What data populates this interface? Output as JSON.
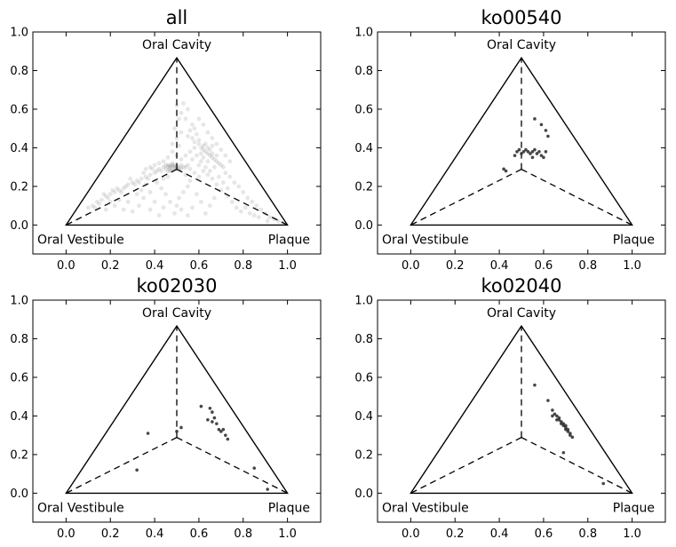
{
  "chart_data": [
    {
      "type": "scatter",
      "title": "all",
      "xlim": [
        -0.15,
        1.15
      ],
      "ylim": [
        -0.15,
        1.0
      ],
      "xticks": [
        "0.0",
        "0.2",
        "0.4",
        "0.6",
        "0.8",
        "1.0"
      ],
      "yticks": [
        "0.0",
        "0.2",
        "0.4",
        "0.6",
        "0.8",
        "1.0"
      ],
      "corner_labels": {
        "top": "Oral Cavity",
        "left": "Oral Vestibule",
        "right": "Plaque"
      },
      "point_color": "#333333",
      "point_alpha": 0.12,
      "points": [
        [
          0.48,
          0.3
        ],
        [
          0.47,
          0.29
        ],
        [
          0.49,
          0.31
        ],
        [
          0.46,
          0.3
        ],
        [
          0.5,
          0.3
        ],
        [
          0.51,
          0.29
        ],
        [
          0.45,
          0.29
        ],
        [
          0.52,
          0.31
        ],
        [
          0.48,
          0.28
        ],
        [
          0.47,
          0.31
        ],
        [
          0.49,
          0.29
        ],
        [
          0.46,
          0.28
        ],
        [
          0.5,
          0.31
        ],
        [
          0.53,
          0.3
        ],
        [
          0.44,
          0.3
        ],
        [
          0.48,
          0.32
        ],
        [
          0.51,
          0.3
        ],
        [
          0.47,
          0.3
        ],
        [
          0.49,
          0.3
        ],
        [
          0.45,
          0.31
        ],
        [
          0.43,
          0.28
        ],
        [
          0.52,
          0.29
        ],
        [
          0.54,
          0.3
        ],
        [
          0.42,
          0.29
        ],
        [
          0.48,
          0.31
        ],
        [
          0.5,
          0.29
        ],
        [
          0.46,
          0.31
        ],
        [
          0.55,
          0.31
        ],
        [
          0.41,
          0.28
        ],
        [
          0.47,
          0.28
        ],
        [
          0.4,
          0.27
        ],
        [
          0.38,
          0.26
        ],
        [
          0.36,
          0.25
        ],
        [
          0.34,
          0.24
        ],
        [
          0.32,
          0.23
        ],
        [
          0.3,
          0.22
        ],
        [
          0.28,
          0.21
        ],
        [
          0.26,
          0.19
        ],
        [
          0.24,
          0.18
        ],
        [
          0.22,
          0.17
        ],
        [
          0.2,
          0.16
        ],
        [
          0.18,
          0.15
        ],
        [
          0.16,
          0.13
        ],
        [
          0.14,
          0.12
        ],
        [
          0.12,
          0.1
        ],
        [
          0.1,
          0.09
        ],
        [
          0.35,
          0.27
        ],
        [
          0.31,
          0.21
        ],
        [
          0.27,
          0.2
        ],
        [
          0.23,
          0.19
        ],
        [
          0.19,
          0.14
        ],
        [
          0.25,
          0.17
        ],
        [
          0.29,
          0.24
        ],
        [
          0.33,
          0.22
        ],
        [
          0.21,
          0.18
        ],
        [
          0.37,
          0.24
        ],
        [
          0.15,
          0.11
        ],
        [
          0.39,
          0.29
        ],
        [
          0.17,
          0.16
        ],
        [
          0.13,
          0.09
        ],
        [
          0.55,
          0.46
        ],
        [
          0.57,
          0.45
        ],
        [
          0.58,
          0.43
        ],
        [
          0.6,
          0.42
        ],
        [
          0.61,
          0.4
        ],
        [
          0.62,
          0.39
        ],
        [
          0.63,
          0.38
        ],
        [
          0.64,
          0.37
        ],
        [
          0.65,
          0.36
        ],
        [
          0.66,
          0.35
        ],
        [
          0.67,
          0.34
        ],
        [
          0.68,
          0.33
        ],
        [
          0.69,
          0.32
        ],
        [
          0.56,
          0.49
        ],
        [
          0.59,
          0.47
        ],
        [
          0.6,
          0.44
        ],
        [
          0.62,
          0.41
        ],
        [
          0.63,
          0.42
        ],
        [
          0.65,
          0.39
        ],
        [
          0.66,
          0.37
        ],
        [
          0.68,
          0.36
        ],
        [
          0.7,
          0.31
        ],
        [
          0.71,
          0.3
        ],
        [
          0.57,
          0.52
        ],
        [
          0.54,
          0.55
        ],
        [
          0.55,
          0.6
        ],
        [
          0.53,
          0.63
        ],
        [
          0.52,
          0.58
        ],
        [
          0.58,
          0.5
        ],
        [
          0.61,
          0.37
        ],
        [
          0.64,
          0.33
        ],
        [
          0.67,
          0.3
        ],
        [
          0.72,
          0.27
        ],
        [
          0.74,
          0.25
        ],
        [
          0.76,
          0.22
        ],
        [
          0.78,
          0.2
        ],
        [
          0.8,
          0.17
        ],
        [
          0.82,
          0.14
        ],
        [
          0.84,
          0.12
        ],
        [
          0.86,
          0.1
        ],
        [
          0.88,
          0.08
        ],
        [
          0.9,
          0.06
        ],
        [
          0.92,
          0.04
        ],
        [
          0.94,
          0.03
        ],
        [
          0.96,
          0.02
        ],
        [
          0.98,
          0.01
        ],
        [
          0.75,
          0.12
        ],
        [
          0.77,
          0.09
        ],
        [
          0.79,
          0.07
        ],
        [
          0.83,
          0.06
        ],
        [
          0.87,
          0.04
        ],
        [
          0.91,
          0.02
        ],
        [
          0.85,
          0.05
        ],
        [
          0.81,
          0.09
        ],
        [
          0.73,
          0.15
        ],
        [
          0.7,
          0.18
        ],
        [
          0.68,
          0.21
        ],
        [
          0.66,
          0.24
        ],
        [
          0.64,
          0.26
        ],
        [
          0.62,
          0.28
        ],
        [
          0.58,
          0.27
        ],
        [
          0.6,
          0.25
        ],
        [
          0.56,
          0.23
        ],
        [
          0.55,
          0.2
        ],
        [
          0.53,
          0.17
        ],
        [
          0.51,
          0.14
        ],
        [
          0.5,
          0.1
        ],
        [
          0.49,
          0.06
        ],
        [
          0.52,
          0.08
        ],
        [
          0.47,
          0.12
        ],
        [
          0.45,
          0.16
        ],
        [
          0.43,
          0.19
        ],
        [
          0.41,
          0.22
        ],
        [
          0.44,
          0.09
        ],
        [
          0.4,
          0.12
        ],
        [
          0.38,
          0.17
        ],
        [
          0.35,
          0.14
        ],
        [
          0.33,
          0.1
        ],
        [
          0.3,
          0.07
        ],
        [
          0.28,
          0.12
        ],
        [
          0.57,
          0.34
        ],
        [
          0.59,
          0.36
        ],
        [
          0.61,
          0.33
        ],
        [
          0.54,
          0.36
        ],
        [
          0.56,
          0.38
        ],
        [
          0.58,
          0.4
        ],
        [
          0.6,
          0.31
        ],
        [
          0.63,
          0.3
        ],
        [
          0.65,
          0.28
        ],
        [
          0.52,
          0.34
        ],
        [
          0.5,
          0.36
        ],
        [
          0.48,
          0.38
        ],
        [
          0.51,
          0.41
        ],
        [
          0.5,
          0.45
        ],
        [
          0.49,
          0.5
        ],
        [
          0.51,
          0.55
        ],
        [
          0.5,
          0.62
        ],
        [
          0.52,
          0.48
        ],
        [
          0.48,
          0.42
        ],
        [
          0.46,
          0.35
        ],
        [
          0.44,
          0.33
        ],
        [
          0.42,
          0.32
        ],
        [
          0.4,
          0.31
        ],
        [
          0.38,
          0.3
        ],
        [
          0.36,
          0.29
        ],
        [
          0.6,
          0.55
        ],
        [
          0.62,
          0.52
        ],
        [
          0.64,
          0.48
        ],
        [
          0.66,
          0.45
        ],
        [
          0.68,
          0.42
        ],
        [
          0.7,
          0.39
        ],
        [
          0.72,
          0.36
        ],
        [
          0.74,
          0.33
        ],
        [
          0.69,
          0.25
        ],
        [
          0.71,
          0.22
        ],
        [
          0.73,
          0.19
        ],
        [
          0.67,
          0.14
        ],
        [
          0.65,
          0.1
        ],
        [
          0.63,
          0.06
        ],
        [
          0.61,
          0.12
        ],
        [
          0.59,
          0.16
        ],
        [
          0.57,
          0.09
        ],
        [
          0.55,
          0.05
        ],
        [
          0.26,
          0.08
        ],
        [
          0.22,
          0.1
        ],
        [
          0.18,
          0.08
        ],
        [
          0.24,
          0.13
        ],
        [
          0.2,
          0.12
        ],
        [
          0.42,
          0.05
        ],
        [
          0.38,
          0.08
        ],
        [
          0.36,
          0.21
        ],
        [
          0.34,
          0.18
        ],
        [
          0.32,
          0.16
        ],
        [
          0.46,
          0.25
        ],
        [
          0.44,
          0.24
        ],
        [
          0.54,
          0.26
        ],
        [
          0.56,
          0.29
        ],
        [
          0.62,
          0.35
        ],
        [
          0.64,
          0.4
        ],
        [
          0.66,
          0.41
        ]
      ]
    },
    {
      "type": "scatter",
      "title": "ko00540",
      "xlim": [
        -0.15,
        1.15
      ],
      "ylim": [
        -0.15,
        1.0
      ],
      "xticks": [
        "0.0",
        "0.2",
        "0.4",
        "0.6",
        "0.8",
        "1.0"
      ],
      "yticks": [
        "0.0",
        "0.2",
        "0.4",
        "0.6",
        "0.8",
        "1.0"
      ],
      "corner_labels": {
        "top": "Oral Cavity",
        "left": "Oral Vestibule",
        "right": "Plaque"
      },
      "point_color": "#333333",
      "point_alpha": 0.9,
      "points": [
        [
          0.56,
          0.55
        ],
        [
          0.59,
          0.52
        ],
        [
          0.61,
          0.49
        ],
        [
          0.62,
          0.46
        ],
        [
          0.5,
          0.37
        ],
        [
          0.51,
          0.38
        ],
        [
          0.52,
          0.39
        ],
        [
          0.53,
          0.38
        ],
        [
          0.54,
          0.37
        ],
        [
          0.55,
          0.38
        ],
        [
          0.56,
          0.39
        ],
        [
          0.57,
          0.37
        ],
        [
          0.58,
          0.38
        ],
        [
          0.59,
          0.36
        ],
        [
          0.6,
          0.35
        ],
        [
          0.48,
          0.38
        ],
        [
          0.49,
          0.39
        ],
        [
          0.47,
          0.36
        ],
        [
          0.55,
          0.35
        ],
        [
          0.61,
          0.38
        ],
        [
          0.42,
          0.29
        ],
        [
          0.43,
          0.28
        ]
      ]
    },
    {
      "type": "scatter",
      "title": "ko02030",
      "xlim": [
        -0.15,
        1.15
      ],
      "ylim": [
        -0.15,
        1.0
      ],
      "xticks": [
        "0.0",
        "0.2",
        "0.4",
        "0.6",
        "0.8",
        "1.0"
      ],
      "yticks": [
        "0.0",
        "0.2",
        "0.4",
        "0.6",
        "0.8",
        "1.0"
      ],
      "corner_labels": {
        "top": "Oral Cavity",
        "left": "Oral Vestibule",
        "right": "Plaque"
      },
      "point_color": "#333333",
      "point_alpha": 0.9,
      "points": [
        [
          0.61,
          0.45
        ],
        [
          0.65,
          0.44
        ],
        [
          0.66,
          0.42
        ],
        [
          0.64,
          0.38
        ],
        [
          0.66,
          0.37
        ],
        [
          0.68,
          0.36
        ],
        [
          0.69,
          0.33
        ],
        [
          0.7,
          0.32
        ],
        [
          0.71,
          0.33
        ],
        [
          0.72,
          0.3
        ],
        [
          0.73,
          0.28
        ],
        [
          0.67,
          0.39
        ],
        [
          0.37,
          0.31
        ],
        [
          0.32,
          0.12
        ],
        [
          0.52,
          0.34
        ],
        [
          0.5,
          0.32
        ],
        [
          0.85,
          0.13
        ],
        [
          0.91,
          0.02
        ]
      ]
    },
    {
      "type": "scatter",
      "title": "ko02040",
      "xlim": [
        -0.15,
        1.15
      ],
      "ylim": [
        -0.15,
        1.0
      ],
      "xticks": [
        "0.0",
        "0.2",
        "0.4",
        "0.6",
        "0.8",
        "1.0"
      ],
      "yticks": [
        "0.0",
        "0.2",
        "0.4",
        "0.6",
        "0.8",
        "1.0"
      ],
      "corner_labels": {
        "top": "Oral Cavity",
        "left": "Oral Vestibule",
        "right": "Plaque"
      },
      "point_color": "#333333",
      "point_alpha": 0.9,
      "points": [
        [
          0.56,
          0.56
        ],
        [
          0.62,
          0.48
        ],
        [
          0.64,
          0.43
        ],
        [
          0.65,
          0.41
        ],
        [
          0.66,
          0.4
        ],
        [
          0.67,
          0.39
        ],
        [
          0.67,
          0.38
        ],
        [
          0.68,
          0.37
        ],
        [
          0.68,
          0.36
        ],
        [
          0.69,
          0.36
        ],
        [
          0.69,
          0.35
        ],
        [
          0.7,
          0.35
        ],
        [
          0.7,
          0.34
        ],
        [
          0.7,
          0.33
        ],
        [
          0.71,
          0.33
        ],
        [
          0.71,
          0.32
        ],
        [
          0.72,
          0.31
        ],
        [
          0.72,
          0.3
        ],
        [
          0.73,
          0.29
        ],
        [
          0.66,
          0.38
        ],
        [
          0.64,
          0.4
        ],
        [
          0.69,
          0.21
        ],
        [
          0.87,
          0.05
        ]
      ]
    }
  ]
}
